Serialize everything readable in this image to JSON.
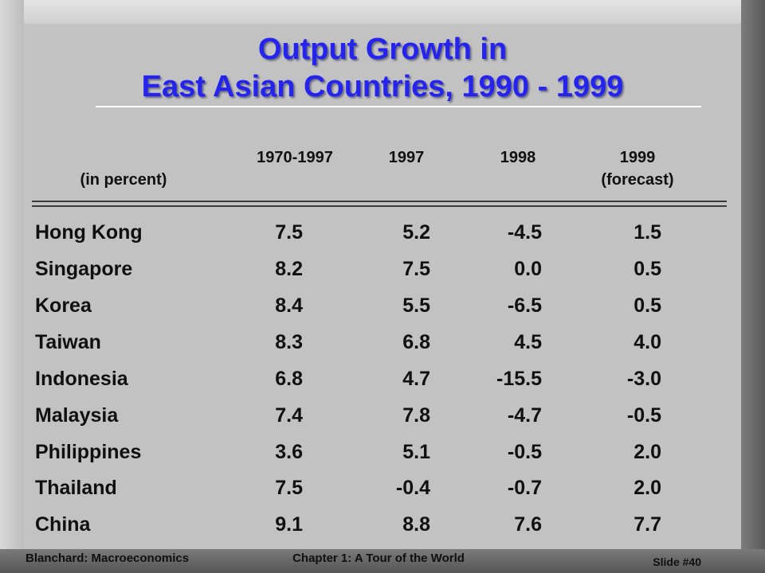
{
  "slide": {
    "title_line1": "Output Growth in",
    "title_line2": "East Asian Countries, 1990 - 1999"
  },
  "table": {
    "unit_label": "(in percent)",
    "columns": [
      {
        "line1": "1970-1997",
        "line2": ""
      },
      {
        "line1": "1997",
        "line2": ""
      },
      {
        "line1": "1998",
        "line2": ""
      },
      {
        "line1": "1999",
        "line2": "(forecast)"
      }
    ],
    "rows": [
      {
        "country": "Hong Kong",
        "values": [
          "7.5",
          "5.2",
          "-4.5",
          "1.5"
        ]
      },
      {
        "country": "Singapore",
        "values": [
          "8.2",
          "7.5",
          "0.0",
          "0.5"
        ]
      },
      {
        "country": "Korea",
        "values": [
          "8.4",
          "5.5",
          "-6.5",
          "0.5"
        ]
      },
      {
        "country": "Taiwan",
        "values": [
          "8.3",
          "6.8",
          "4.5",
          "4.0"
        ]
      },
      {
        "country": "Indonesia",
        "values": [
          "6.8",
          "4.7",
          "-15.5",
          "-3.0"
        ]
      },
      {
        "country": "Malaysia",
        "values": [
          "7.4",
          "7.8",
          "-4.7",
          "-0.5"
        ]
      },
      {
        "country": "Philippines",
        "values": [
          "3.6",
          "5.1",
          "-0.5",
          "2.0"
        ]
      },
      {
        "country": "Thailand",
        "values": [
          "7.5",
          "-0.4",
          "-0.7",
          "2.0"
        ]
      },
      {
        "country": "China",
        "values": [
          "9.1",
          "8.8",
          "7.6",
          "7.7"
        ]
      }
    ]
  },
  "footer": {
    "left": "Blanchard: Macroeconomics",
    "center": "Chapter 1: A Tour of the World",
    "right": "Slide #40"
  },
  "colors": {
    "title": "#2424ee",
    "panel": "#c2c2c2",
    "text": "#101010"
  }
}
